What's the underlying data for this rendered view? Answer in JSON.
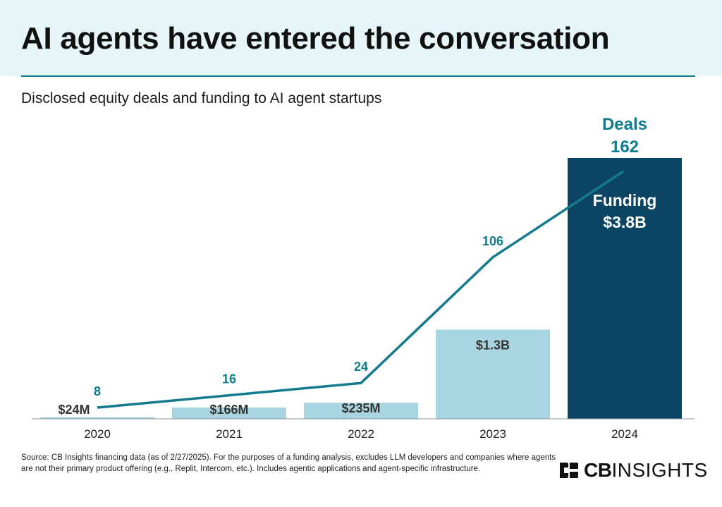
{
  "title": "AI agents have entered the conversation",
  "subtitle": "Disclosed equity deals and funding to AI agent startups",
  "source_note": "Source: CB Insights financing data (as of 2/27/2025). For the purposes of a funding analysis, excludes LLM developers and companies where agents are not their primary product offering (e.g., Replit, Intercom, etc.). Includes agentic applications and agent-specific infrastructure.",
  "logo": {
    "cb": "CB",
    "insights": "INSIGHTS"
  },
  "colors": {
    "header_bg": "#e6f5f8",
    "accent": "#0f7b8c",
    "bar_light": "#a8d5df",
    "bar_dark": "#0b4563",
    "line": "#137b8c"
  },
  "chart_data": {
    "type": "bar",
    "categories": [
      "2020",
      "2021",
      "2022",
      "2023",
      "2024"
    ],
    "series": [
      {
        "name": "Funding",
        "values": [
          0.024,
          0.166,
          0.235,
          1.3,
          3.8
        ],
        "labels": [
          "$24M",
          "$166M",
          "$235M",
          "$1.3B",
          "$3.8B"
        ]
      },
      {
        "name": "Deals",
        "values": [
          8,
          16,
          24,
          106,
          162
        ],
        "labels": [
          "8",
          "16",
          "24",
          "106",
          "162"
        ],
        "render": "line"
      }
    ],
    "highlight_labels": {
      "deals_title": "Deals",
      "funding_title": "Funding"
    },
    "funding_unit": "USD billions",
    "grid": false,
    "legend": "none"
  }
}
